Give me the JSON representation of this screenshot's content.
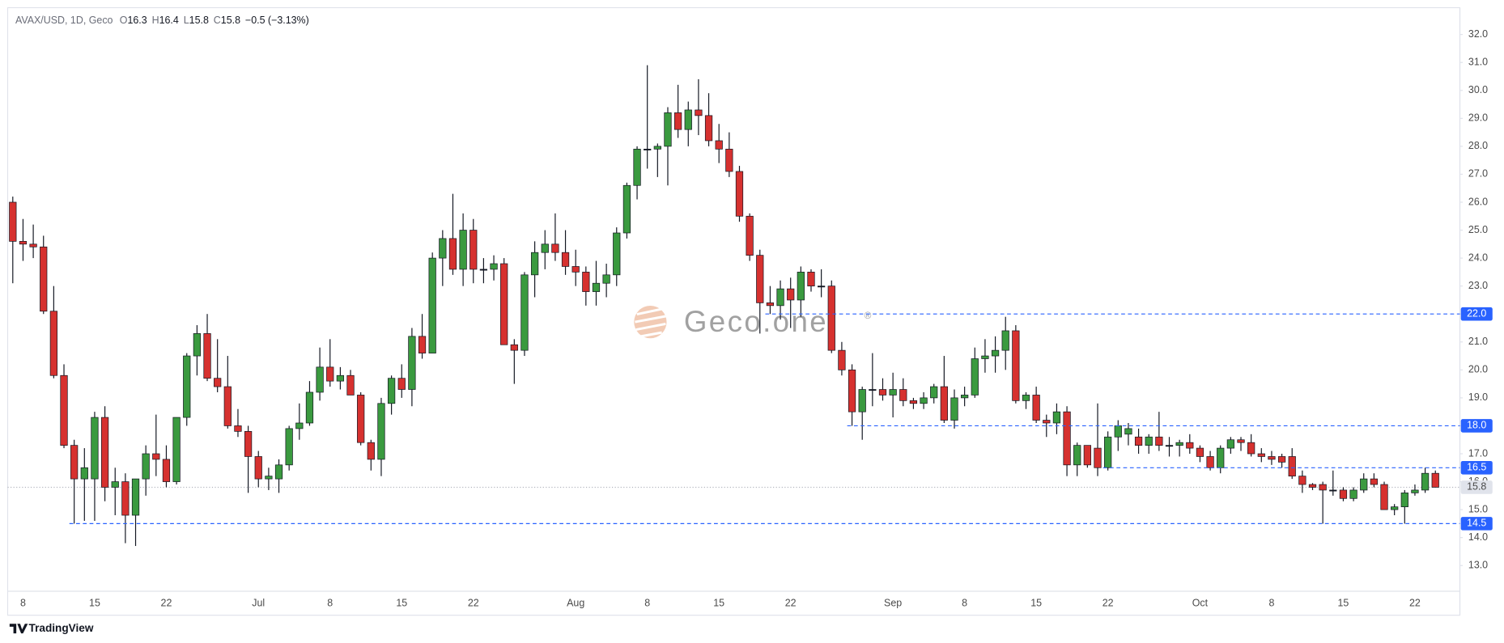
{
  "header": {
    "symbol": "AVAX/USD, 1D, Geco",
    "ohlc": [
      {
        "label": "O",
        "value": "16.3"
      },
      {
        "label": "H",
        "value": "16.4"
      },
      {
        "label": "L",
        "value": "15.8"
      },
      {
        "label": "C",
        "value": "15.8"
      }
    ],
    "change": "−0.5 (−3.13%)"
  },
  "watermark": {
    "name": "Geco.one",
    "mark": "®"
  },
  "footer": "TradingView",
  "chart_data": {
    "type": "candlestick",
    "up_color": "#3a9a3f",
    "down_color": "#d6312f",
    "level_color": "#2962ff",
    "categories": [
      null,
      "8",
      null,
      null,
      null,
      null,
      null,
      null,
      "15",
      null,
      null,
      null,
      null,
      null,
      null,
      "22",
      null,
      null,
      null,
      null,
      null,
      null,
      null,
      null,
      "Jul",
      null,
      null,
      null,
      null,
      null,
      null,
      "8",
      null,
      null,
      null,
      null,
      null,
      null,
      "15",
      null,
      null,
      null,
      null,
      null,
      null,
      "22",
      null,
      null,
      null,
      null,
      null,
      null,
      null,
      null,
      null,
      "Aug",
      null,
      null,
      null,
      null,
      null,
      null,
      "8",
      null,
      null,
      null,
      null,
      null,
      null,
      "15",
      null,
      null,
      null,
      null,
      null,
      null,
      "22",
      null,
      null,
      null,
      null,
      null,
      null,
      null,
      null,
      null,
      "Sep",
      null,
      null,
      null,
      null,
      null,
      null,
      "8",
      null,
      null,
      null,
      null,
      null,
      null,
      "15",
      null,
      null,
      null,
      null,
      null,
      null,
      "22",
      null,
      null,
      null,
      null,
      null,
      null,
      null,
      null,
      "Oct",
      null,
      null,
      null,
      null,
      null,
      null,
      "8",
      null,
      null,
      null,
      null,
      null,
      null,
      "15",
      null,
      null,
      null,
      null,
      null,
      null,
      "22",
      null,
      null
    ],
    "open": [
      26.0,
      24.6,
      24.5,
      24.4,
      22.1,
      19.8,
      17.3,
      16.1,
      16.1,
      18.3,
      15.8,
      16.0,
      14.8,
      16.1,
      17.0,
      16.8,
      16.0,
      18.3,
      20.5,
      21.3,
      19.7,
      19.4,
      18.0,
      17.8,
      16.9,
      16.1,
      16.1,
      16.6,
      17.9,
      18.1,
      19.2,
      20.1,
      19.6,
      19.8,
      19.1,
      17.4,
      16.8,
      18.8,
      19.7,
      19.3,
      21.2,
      20.6,
      24.0,
      24.7,
      23.6,
      25.0,
      23.6,
      23.6,
      23.8,
      20.9,
      20.7,
      23.4,
      24.2,
      24.5,
      24.2,
      23.7,
      23.5,
      22.8,
      23.1,
      23.4,
      24.9,
      26.6,
      27.9,
      27.9,
      28.0,
      29.2,
      28.6,
      29.3,
      29.1,
      28.2,
      27.9,
      27.1,
      25.5,
      24.1,
      22.4,
      22.3,
      22.9,
      22.5,
      23.5,
      23.0,
      23.0,
      20.7,
      20.0,
      18.5,
      19.3,
      19.3,
      19.1,
      19.3,
      18.9,
      18.8,
      19.0,
      19.4,
      18.2,
      19.0,
      19.1,
      20.4,
      20.5,
      20.7,
      21.4,
      18.9,
      19.1,
      18.2,
      18.1,
      18.5,
      16.6,
      17.3,
      17.2,
      16.5,
      17.6,
      17.7,
      17.6,
      17.3,
      17.6,
      17.3,
      17.3,
      17.4,
      17.2,
      16.9,
      16.5,
      17.2,
      17.5,
      17.4,
      17.0,
      16.9,
      16.9,
      16.9,
      16.2,
      15.9,
      15.9,
      15.7,
      15.7,
      15.4,
      15.7,
      16.1,
      15.9,
      15.0,
      15.1,
      15.6,
      15.7,
      16.3
    ],
    "high": [
      26.2,
      25.4,
      25.2,
      24.8,
      23.0,
      20.2,
      17.5,
      17.2,
      18.5,
      18.7,
      16.5,
      16.3,
      16.1,
      17.3,
      18.4,
      17.3,
      18.3,
      20.6,
      21.6,
      22.0,
      21.1,
      20.5,
      18.6,
      18.0,
      17.1,
      16.5,
      16.8,
      18.0,
      18.8,
      19.6,
      20.8,
      21.1,
      20.1,
      20.0,
      19.2,
      17.5,
      19.0,
      19.8,
      20.2,
      21.5,
      22.0,
      24.2,
      25.0,
      26.3,
      25.6,
      25.4,
      24.0,
      24.1,
      24.0,
      21.1,
      23.5,
      24.6,
      25.0,
      25.6,
      25.0,
      24.3,
      23.7,
      23.9,
      23.8,
      25.1,
      26.7,
      28.0,
      30.9,
      28.1,
      29.4,
      30.2,
      29.6,
      30.4,
      29.9,
      28.8,
      28.5,
      27.3,
      25.6,
      24.3,
      23.0,
      23.2,
      23.3,
      23.7,
      23.6,
      23.6,
      23.2,
      21.0,
      20.2,
      19.4,
      20.6,
      19.7,
      19.9,
      19.7,
      19.0,
      19.2,
      19.5,
      20.5,
      19.3,
      19.4,
      20.8,
      21.1,
      21.2,
      21.9,
      21.6,
      19.2,
      19.4,
      18.4,
      18.8,
      18.7,
      17.4,
      17.3,
      18.8,
      17.8,
      18.2,
      18.1,
      17.9,
      17.7,
      18.5,
      17.6,
      17.5,
      17.7,
      17.3,
      17.1,
      17.3,
      17.6,
      17.6,
      17.7,
      17.2,
      17.1,
      17.0,
      17.2,
      16.4,
      15.95,
      16.0,
      16.4,
      15.8,
      15.8,
      16.3,
      16.3,
      16.0,
      15.2,
      15.7,
      15.9,
      16.5,
      16.4
    ],
    "low": [
      23.1,
      23.9,
      24.0,
      22.0,
      19.7,
      17.2,
      14.5,
      14.6,
      14.6,
      15.3,
      14.8,
      13.8,
      13.7,
      15.5,
      16.2,
      15.8,
      15.9,
      18.0,
      19.8,
      19.6,
      19.2,
      17.9,
      17.6,
      15.6,
      15.8,
      15.7,
      15.6,
      16.4,
      17.5,
      18.0,
      18.9,
      19.4,
      19.3,
      19.1,
      17.3,
      16.4,
      16.2,
      18.4,
      19.0,
      18.7,
      20.4,
      20.6,
      23.0,
      23.4,
      23.0,
      23.1,
      23.1,
      23.2,
      20.9,
      19.5,
      20.5,
      22.6,
      23.6,
      23.9,
      23.4,
      23.0,
      22.3,
      22.3,
      22.6,
      23.0,
      24.7,
      26.1,
      27.2,
      26.9,
      26.6,
      28.3,
      28.0,
      28.4,
      28.0,
      27.4,
      26.9,
      25.3,
      23.9,
      21.3,
      22.0,
      21.8,
      21.5,
      21.9,
      22.8,
      22.6,
      20.6,
      19.8,
      18.0,
      17.5,
      18.7,
      18.9,
      18.3,
      18.7,
      18.6,
      18.6,
      18.8,
      18.1,
      17.9,
      18.7,
      19.0,
      19.9,
      19.9,
      20.0,
      18.8,
      18.6,
      18.1,
      17.6,
      17.7,
      16.2,
      16.2,
      16.5,
      16.2,
      16.4,
      17.1,
      17.3,
      17.0,
      17.0,
      17.1,
      16.9,
      16.9,
      17.0,
      16.7,
      16.4,
      16.3,
      17.0,
      17.1,
      16.9,
      16.7,
      16.6,
      16.5,
      16.1,
      15.6,
      15.7,
      14.5,
      15.5,
      15.3,
      15.3,
      15.6,
      15.8,
      15.0,
      14.8,
      14.5,
      15.5,
      15.6,
      15.8
    ],
    "close": [
      24.6,
      24.5,
      24.4,
      22.1,
      19.8,
      17.3,
      16.1,
      16.5,
      18.3,
      15.8,
      16.0,
      14.8,
      16.1,
      17.0,
      16.8,
      16.0,
      18.3,
      20.5,
      21.3,
      19.7,
      19.4,
      18.0,
      17.8,
      16.9,
      16.1,
      16.2,
      16.6,
      17.9,
      18.1,
      19.2,
      20.1,
      19.6,
      19.8,
      19.1,
      17.4,
      16.8,
      18.8,
      19.7,
      19.3,
      21.2,
      20.6,
      24.0,
      24.7,
      23.6,
      25.0,
      23.6,
      23.6,
      23.8,
      20.9,
      20.7,
      23.4,
      24.2,
      24.5,
      24.2,
      23.7,
      23.5,
      22.8,
      23.1,
      23.4,
      24.9,
      26.6,
      27.9,
      27.9,
      28.0,
      29.2,
      28.6,
      29.3,
      29.1,
      28.2,
      27.9,
      27.1,
      25.5,
      24.1,
      22.4,
      22.3,
      22.9,
      22.5,
      23.5,
      23.0,
      23.0,
      20.7,
      20.0,
      18.5,
      19.3,
      19.3,
      19.1,
      19.3,
      18.9,
      18.8,
      19.0,
      19.4,
      18.2,
      19.0,
      19.1,
      20.4,
      20.5,
      20.7,
      21.4,
      18.9,
      19.1,
      18.2,
      18.1,
      18.5,
      16.6,
      17.3,
      16.6,
      16.5,
      17.6,
      18.0,
      17.9,
      17.3,
      17.6,
      17.3,
      17.3,
      17.4,
      17.2,
      16.9,
      16.5,
      17.2,
      17.5,
      17.4,
      17.0,
      16.9,
      16.8,
      16.7,
      16.2,
      15.9,
      15.8,
      15.7,
      15.7,
      15.4,
      15.7,
      16.1,
      15.9,
      15.0,
      15.1,
      15.6,
      15.7,
      16.3,
      15.8
    ],
    "ylim": [
      12.08,
      32.96
    ],
    "yticks": [
      {
        "value": 13,
        "label": "13.0"
      },
      {
        "value": 14,
        "label": "14.0"
      },
      {
        "value": 15,
        "label": "15.0"
      },
      {
        "value": 16,
        "label": "16.0"
      },
      {
        "value": 17,
        "label": "17.0"
      },
      {
        "value": 18,
        "label": "18.0"
      },
      {
        "value": 19,
        "label": "19.0"
      },
      {
        "value": 20,
        "label": "20.0"
      },
      {
        "value": 21,
        "label": "21.0"
      },
      {
        "value": 22,
        "label": "22.0"
      },
      {
        "value": 23,
        "label": "23.0"
      },
      {
        "value": 24,
        "label": "24.0"
      },
      {
        "value": 25,
        "label": "25.0"
      },
      {
        "value": 26,
        "label": "26.0"
      },
      {
        "value": 27,
        "label": "27.0"
      },
      {
        "value": 28,
        "label": "28.0"
      },
      {
        "value": 29,
        "label": "29.0"
      },
      {
        "value": 30,
        "label": "30.0"
      },
      {
        "value": 31,
        "label": "31.0"
      },
      {
        "value": 32,
        "label": "32.0"
      }
    ],
    "levels": [
      {
        "value": 22,
        "label": "22.0"
      },
      {
        "value": 18,
        "label": "18.0"
      },
      {
        "value": 16.5,
        "label": "16.5"
      },
      {
        "value": 14.5,
        "label": "14.5"
      }
    ],
    "last_price": {
      "value": 15.8,
      "label": "15.8"
    }
  }
}
